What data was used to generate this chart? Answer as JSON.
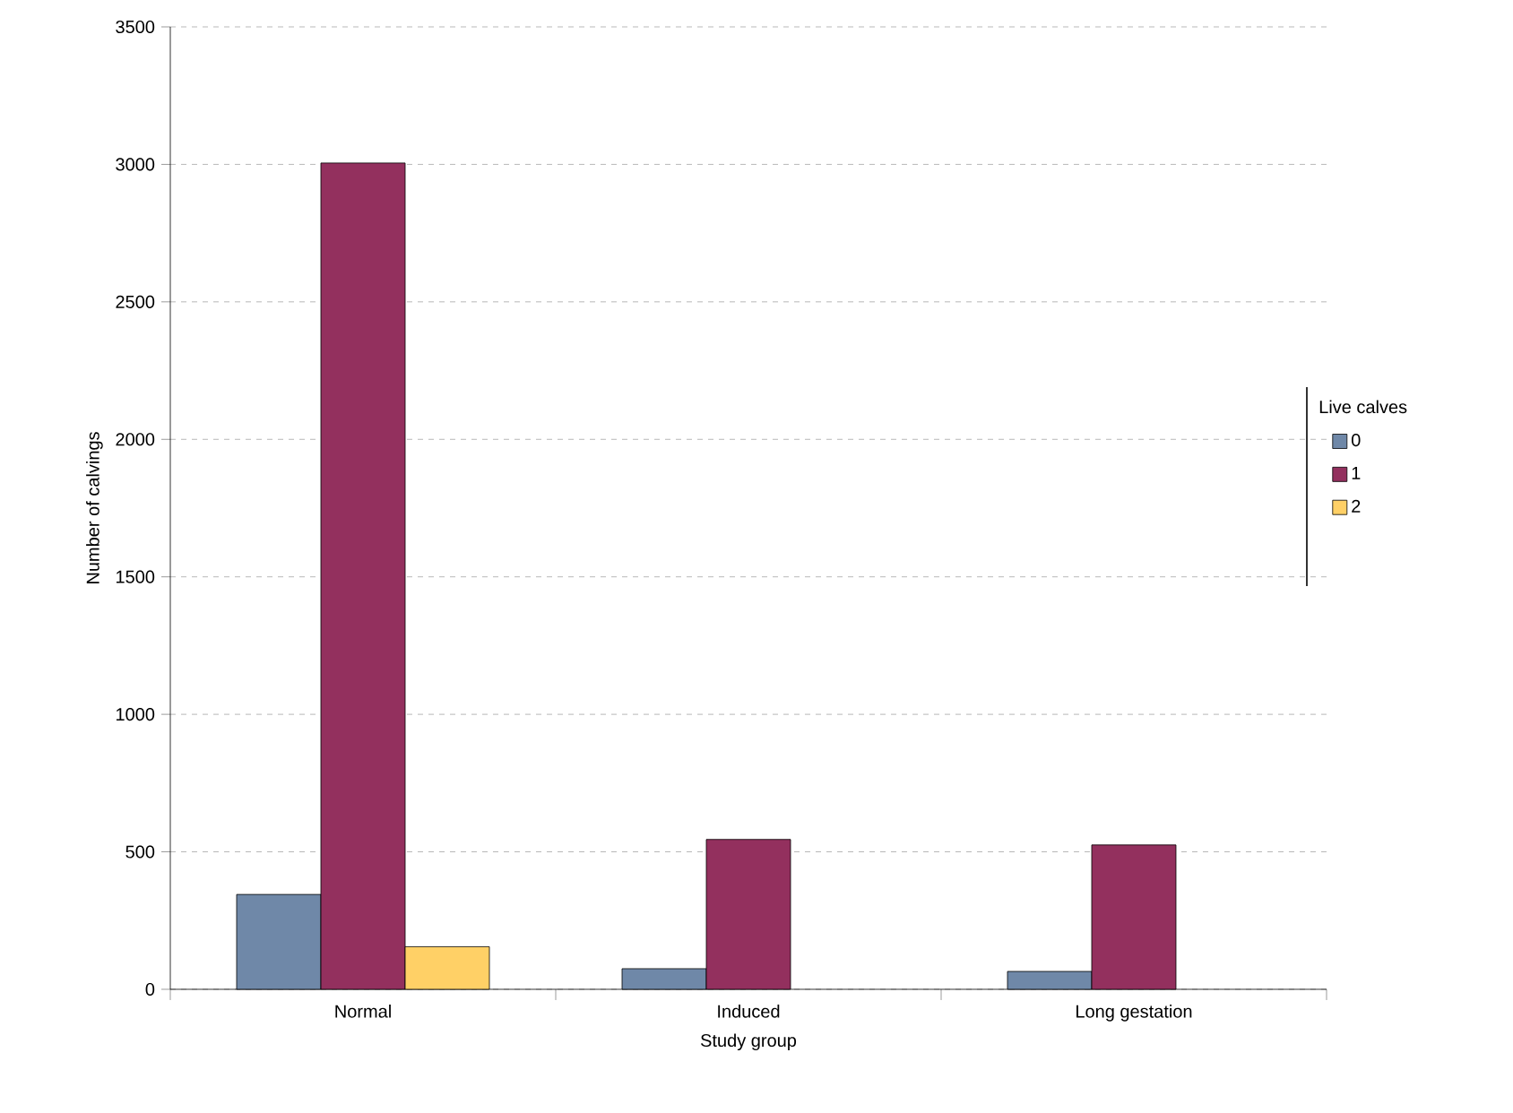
{
  "chart_data": {
    "type": "bar",
    "xlabel": "Study group",
    "ylabel": "Number of calvings",
    "legend_title": "Live calves",
    "categories": [
      "Normal",
      "Induced",
      "Long gestation"
    ],
    "series": [
      {
        "name": "0",
        "color": "#6f88a8",
        "values": [
          345,
          75,
          65
        ]
      },
      {
        "name": "1",
        "color": "#93305e",
        "values": [
          3005,
          545,
          525
        ]
      },
      {
        "name": "2",
        "color": "#ffd066",
        "values": [
          155,
          null,
          null
        ]
      }
    ],
    "ylim": [
      0,
      3500
    ],
    "yticks": [
      0,
      500,
      1000,
      1500,
      2000,
      2500,
      3000,
      3500
    ],
    "grid": "y",
    "legend": "right"
  }
}
